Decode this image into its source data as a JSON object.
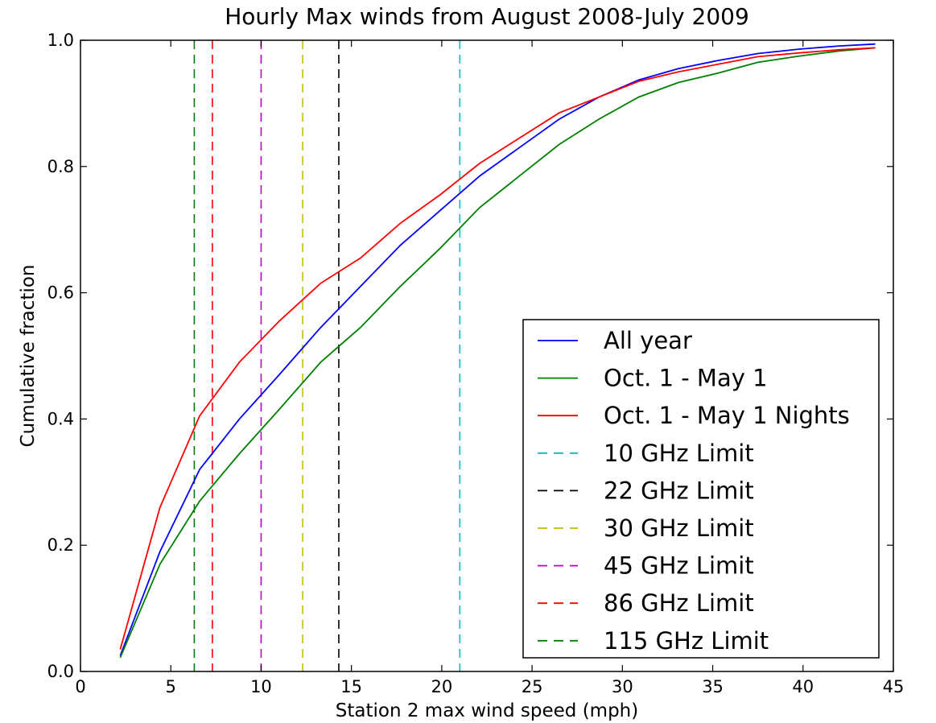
{
  "chart_data": {
    "type": "line",
    "title": "Hourly Max winds from August 2008-July 2009",
    "xlabel": "Station 2 max wind speed (mph)",
    "ylabel": "Cumulative fraction",
    "xlim": [
      0,
      45
    ],
    "ylim": [
      0.0,
      1.0
    ],
    "xticks": [
      0,
      5,
      10,
      15,
      20,
      25,
      30,
      35,
      40,
      45
    ],
    "xtick_labels": [
      "0",
      "5",
      "10",
      "15",
      "20",
      "25",
      "30",
      "35",
      "40",
      "45"
    ],
    "yticks": [
      0.0,
      0.2,
      0.4,
      0.6,
      0.8,
      1.0
    ],
    "ytick_labels": [
      "0.0",
      "0.2",
      "0.4",
      "0.6",
      "0.8",
      "1.0"
    ],
    "grid": false,
    "legend_position": "lower-right",
    "series": [
      {
        "name": "All year",
        "color": "#0000ff",
        "style": "solid",
        "x": [
          2.2,
          4.4,
          6.6,
          8.8,
          11.0,
          13.3,
          15.5,
          17.7,
          19.9,
          22.1,
          24.3,
          26.5,
          28.7,
          30.9,
          33.1,
          35.3,
          37.5,
          39.8,
          42.0,
          44.0
        ],
        "y": [
          0.025,
          0.19,
          0.32,
          0.4,
          0.47,
          0.545,
          0.61,
          0.675,
          0.73,
          0.785,
          0.83,
          0.875,
          0.91,
          0.937,
          0.955,
          0.968,
          0.979,
          0.986,
          0.991,
          0.994
        ]
      },
      {
        "name": "Oct. 1 - May 1",
        "color": "#008000",
        "style": "solid",
        "x": [
          2.2,
          4.4,
          6.6,
          8.8,
          11.0,
          13.3,
          15.5,
          17.7,
          19.9,
          22.1,
          24.3,
          26.5,
          28.7,
          30.9,
          33.1,
          35.3,
          37.5,
          39.8,
          42.0,
          44.0
        ],
        "y": [
          0.022,
          0.17,
          0.27,
          0.345,
          0.415,
          0.49,
          0.545,
          0.61,
          0.67,
          0.735,
          0.785,
          0.835,
          0.875,
          0.91,
          0.933,
          0.948,
          0.965,
          0.975,
          0.983,
          0.988
        ]
      },
      {
        "name": "Oct. 1 - May 1 Nights",
        "color": "#ff0000",
        "style": "solid",
        "x": [
          2.2,
          4.4,
          6.6,
          8.8,
          11.0,
          13.3,
          15.5,
          17.7,
          19.9,
          22.1,
          24.3,
          26.5,
          28.7,
          30.9,
          33.1,
          35.3,
          37.5,
          39.8,
          42.0,
          44.0
        ],
        "y": [
          0.035,
          0.26,
          0.405,
          0.49,
          0.555,
          0.615,
          0.655,
          0.71,
          0.755,
          0.805,
          0.845,
          0.885,
          0.91,
          0.935,
          0.95,
          0.962,
          0.974,
          0.98,
          0.985,
          0.988
        ]
      }
    ],
    "limits": [
      {
        "name": "10 GHz Limit",
        "color": "#00bfbf",
        "style": "dashed",
        "x": 21.0
      },
      {
        "name": "22 GHz Limit",
        "color": "#000000",
        "style": "dashed",
        "x": 14.3
      },
      {
        "name": "30 GHz Limit",
        "color": "#bfbf00",
        "style": "dashed",
        "x": 12.3
      },
      {
        "name": "45 GHz Limit",
        "color": "#bf00bf",
        "style": "dashed",
        "x": 10.0
      },
      {
        "name": "86 GHz Limit",
        "color": "#ff0000",
        "style": "dashed",
        "x": 7.3
      },
      {
        "name": "115 GHz Limit",
        "color": "#008000",
        "style": "dashed",
        "x": 6.3
      }
    ]
  }
}
